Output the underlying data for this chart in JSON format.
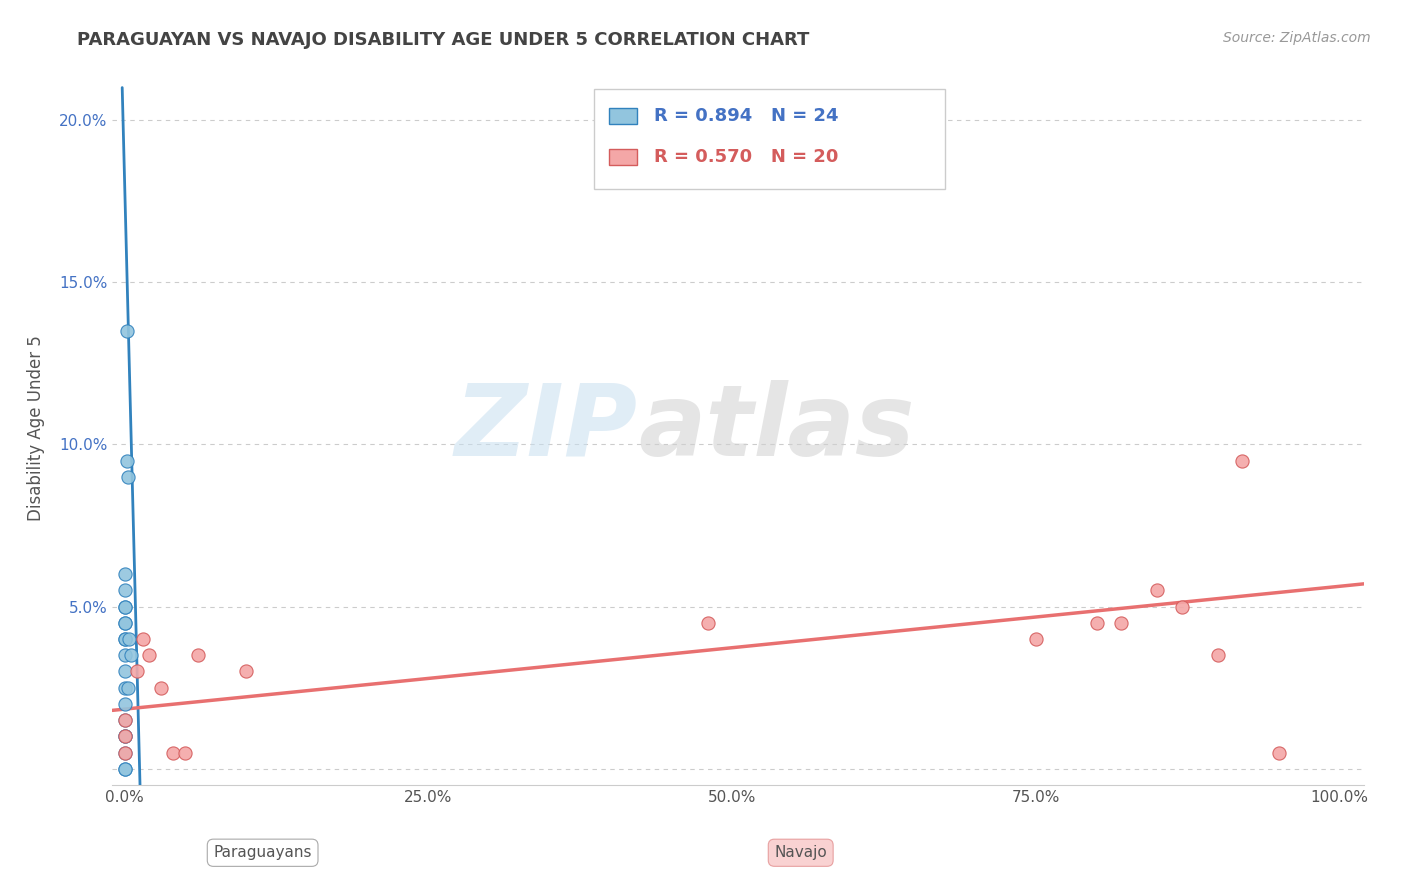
{
  "title": "PARAGUAYAN VS NAVAJO DISABILITY AGE UNDER 5 CORRELATION CHART",
  "source": "Source: ZipAtlas.com",
  "xlabel_paraguayan": "Paraguayans",
  "xlabel_navajo": "Navajo",
  "ylabel": "Disability Age Under 5",
  "xlim": [
    -0.01,
    1.02
  ],
  "ylim": [
    -0.005,
    0.215
  ],
  "xticks": [
    0.0,
    0.25,
    0.5,
    0.75,
    1.0
  ],
  "xtick_labels": [
    "0.0%",
    "25.0%",
    "50.0%",
    "75.0%",
    "100.0%"
  ],
  "yticks": [
    0.0,
    0.05,
    0.1,
    0.15,
    0.2
  ],
  "ytick_labels": [
    "",
    "5.0%",
    "10.0%",
    "15.0%",
    "20.0%"
  ],
  "legend_R1": "R = 0.894",
  "legend_N1": "N = 24",
  "legend_R2": "R = 0.570",
  "legend_N2": "N = 20",
  "paraguayan_color": "#92c5de",
  "navajo_color": "#f4a7a7",
  "blue_line_color": "#3182bd",
  "pink_line_color": "#e87070",
  "watermark_zip": "ZIP",
  "watermark_atlas": "atlas",
  "paraguayan_x": [
    0.0,
    0.0,
    0.0,
    0.0,
    0.0,
    0.0,
    0.0,
    0.0,
    0.0,
    0.0,
    0.0,
    0.0,
    0.0,
    0.0,
    0.0,
    0.0,
    0.0,
    0.0,
    0.002,
    0.003,
    0.004,
    0.005,
    0.003,
    0.002
  ],
  "paraguayan_y": [
    0.0,
    0.0,
    0.005,
    0.01,
    0.01,
    0.015,
    0.02,
    0.025,
    0.03,
    0.035,
    0.04,
    0.04,
    0.045,
    0.045,
    0.05,
    0.05,
    0.055,
    0.06,
    0.135,
    0.09,
    0.04,
    0.035,
    0.025,
    0.095
  ],
  "navajo_x": [
    0.0,
    0.0,
    0.0,
    0.01,
    0.015,
    0.02,
    0.03,
    0.04,
    0.05,
    0.06,
    0.1,
    0.48,
    0.75,
    0.8,
    0.82,
    0.85,
    0.87,
    0.9,
    0.92,
    0.95
  ],
  "navajo_y": [
    0.005,
    0.01,
    0.015,
    0.03,
    0.04,
    0.035,
    0.025,
    0.005,
    0.005,
    0.035,
    0.03,
    0.045,
    0.04,
    0.045,
    0.045,
    0.055,
    0.05,
    0.035,
    0.095,
    0.005
  ],
  "blue_line_x": [
    -0.002,
    0.013
  ],
  "blue_line_y": [
    0.21,
    -0.01
  ],
  "pink_line_x": [
    -0.01,
    1.02
  ],
  "pink_line_y": [
    0.018,
    0.057
  ]
}
